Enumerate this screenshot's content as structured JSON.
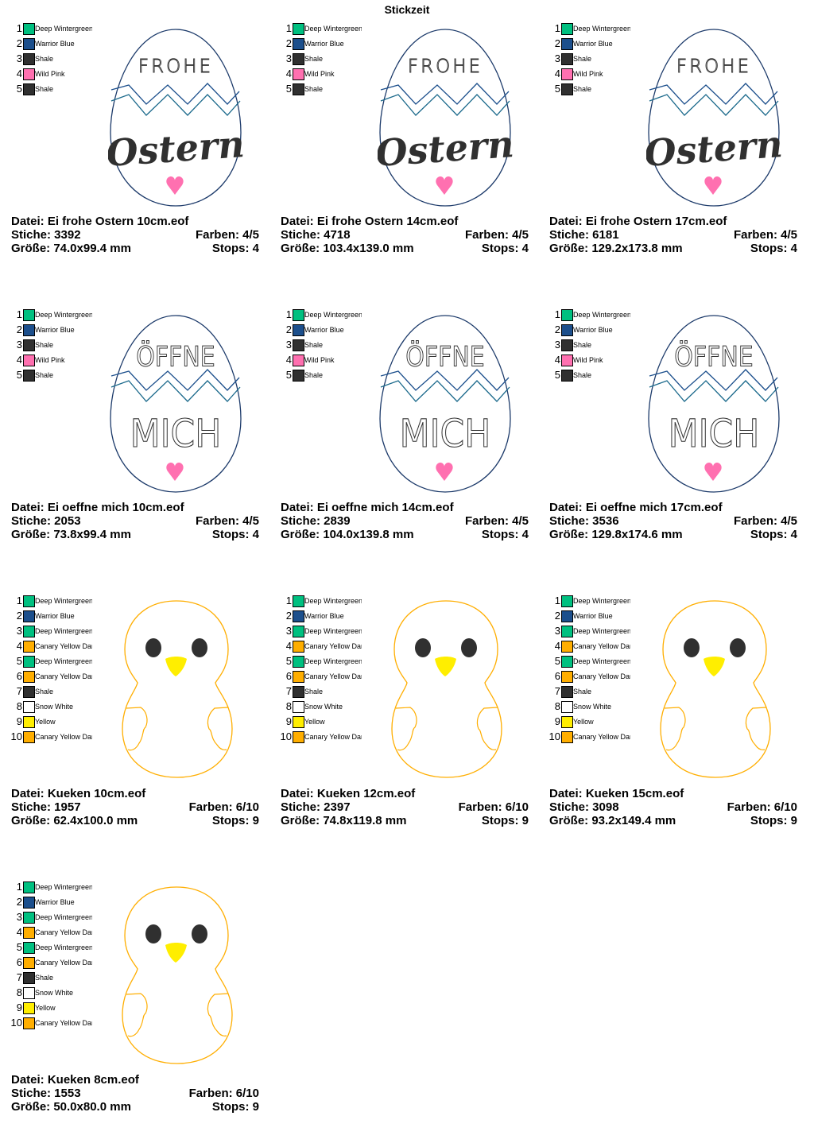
{
  "title": "Stickzeit",
  "palette": {
    "Deep Wintergreen": "#00c080",
    "Warrior Blue": "#1c4f8c",
    "Shale": "#303030",
    "Wild Pink": "#ff70b0",
    "Canary Yellow Dark": "#ffae00",
    "Snow White": "#ffffff",
    "Yellow": "#ffee00"
  },
  "cards": [
    {
      "design": "egg-frohe",
      "art_text": [
        "FROHE",
        "Ostern"
      ],
      "file": "Datei: Ei frohe Ostern 10cm.eof",
      "stitches": "Stiche: 3392",
      "colors_used": "Farben: 4/5",
      "size": "Größe: 74.0x99.4 mm",
      "stops": "Stops: 4",
      "colors": [
        {
          "n": "1",
          "name": "Deep Wintergreen",
          "hex": "#00c080"
        },
        {
          "n": "2",
          "name": "Warrior Blue",
          "hex": "#1c4f8c"
        },
        {
          "n": "3",
          "name": "Shale",
          "hex": "#303030"
        },
        {
          "n": "4",
          "name": "Wild Pink",
          "hex": "#ff70b0"
        },
        {
          "n": "5",
          "name": "Shale",
          "hex": "#303030"
        }
      ]
    },
    {
      "design": "egg-frohe",
      "art_text": [
        "FROHE",
        "Ostern"
      ],
      "file": "Datei: Ei frohe Ostern 14cm.eof",
      "stitches": "Stiche: 4718",
      "colors_used": "Farben: 4/5",
      "size": "Größe: 103.4x139.0 mm",
      "stops": "Stops: 4",
      "colors": [
        {
          "n": "1",
          "name": "Deep Wintergreen",
          "hex": "#00c080"
        },
        {
          "n": "2",
          "name": "Warrior Blue",
          "hex": "#1c4f8c"
        },
        {
          "n": "3",
          "name": "Shale",
          "hex": "#303030"
        },
        {
          "n": "4",
          "name": "Wild Pink",
          "hex": "#ff70b0"
        },
        {
          "n": "5",
          "name": "Shale",
          "hex": "#303030"
        }
      ]
    },
    {
      "design": "egg-frohe",
      "art_text": [
        "FROHE",
        "Ostern"
      ],
      "file": "Datei: Ei frohe Ostern 17cm.eof",
      "stitches": "Stiche: 6181",
      "colors_used": "Farben: 4/5",
      "size": "Größe: 129.2x173.8 mm",
      "stops": "Stops: 4",
      "colors": [
        {
          "n": "1",
          "name": "Deep Wintergreen",
          "hex": "#00c080"
        },
        {
          "n": "2",
          "name": "Warrior Blue",
          "hex": "#1c4f8c"
        },
        {
          "n": "3",
          "name": "Shale",
          "hex": "#303030"
        },
        {
          "n": "4",
          "name": "Wild Pink",
          "hex": "#ff70b0"
        },
        {
          "n": "5",
          "name": "Shale",
          "hex": "#303030"
        }
      ]
    },
    {
      "design": "egg-oeffne",
      "art_text": [
        "ÖFFNE",
        "MICH"
      ],
      "file": "Datei: Ei oeffne mich 10cm.eof",
      "stitches": "Stiche: 2053",
      "colors_used": "Farben: 4/5",
      "size": "Größe: 73.8x99.4 mm",
      "stops": "Stops: 4",
      "colors": [
        {
          "n": "1",
          "name": "Deep Wintergreen",
          "hex": "#00c080"
        },
        {
          "n": "2",
          "name": "Warrior Blue",
          "hex": "#1c4f8c"
        },
        {
          "n": "3",
          "name": "Shale",
          "hex": "#303030"
        },
        {
          "n": "4",
          "name": "Wild Pink",
          "hex": "#ff70b0"
        },
        {
          "n": "5",
          "name": "Shale",
          "hex": "#303030"
        }
      ]
    },
    {
      "design": "egg-oeffne",
      "art_text": [
        "ÖFFNE",
        "MICH"
      ],
      "file": "Datei: Ei oeffne mich 14cm.eof",
      "stitches": "Stiche: 2839",
      "colors_used": "Farben: 4/5",
      "size": "Größe: 104.0x139.8 mm",
      "stops": "Stops: 4",
      "colors": [
        {
          "n": "1",
          "name": "Deep Wintergreen",
          "hex": "#00c080"
        },
        {
          "n": "2",
          "name": "Warrior Blue",
          "hex": "#1c4f8c"
        },
        {
          "n": "3",
          "name": "Shale",
          "hex": "#303030"
        },
        {
          "n": "4",
          "name": "Wild Pink",
          "hex": "#ff70b0"
        },
        {
          "n": "5",
          "name": "Shale",
          "hex": "#303030"
        }
      ]
    },
    {
      "design": "egg-oeffne",
      "art_text": [
        "ÖFFNE",
        "MICH"
      ],
      "file": "Datei: Ei oeffne mich 17cm.eof",
      "stitches": "Stiche: 3536",
      "colors_used": "Farben: 4/5",
      "size": "Größe: 129.8x174.6 mm",
      "stops": "Stops: 4",
      "colors": [
        {
          "n": "1",
          "name": "Deep Wintergreen",
          "hex": "#00c080"
        },
        {
          "n": "2",
          "name": "Warrior Blue",
          "hex": "#1c4f8c"
        },
        {
          "n": "3",
          "name": "Shale",
          "hex": "#303030"
        },
        {
          "n": "4",
          "name": "Wild Pink",
          "hex": "#ff70b0"
        },
        {
          "n": "5",
          "name": "Shale",
          "hex": "#303030"
        }
      ]
    },
    {
      "design": "chick",
      "file": "Datei: Kueken 10cm.eof",
      "stitches": "Stiche: 1957",
      "colors_used": "Farben: 6/10",
      "size": "Größe: 62.4x100.0 mm",
      "stops": "Stops: 9",
      "colors": [
        {
          "n": "1",
          "name": "Deep Wintergreen",
          "hex": "#00c080"
        },
        {
          "n": "2",
          "name": "Warrior Blue",
          "hex": "#1c4f8c"
        },
        {
          "n": "3",
          "name": "Deep Wintergreen",
          "hex": "#00c080"
        },
        {
          "n": "4",
          "name": "Canary Yellow Dark",
          "hex": "#ffae00"
        },
        {
          "n": "5",
          "name": "Deep Wintergreen",
          "hex": "#00c080"
        },
        {
          "n": "6",
          "name": "Canary Yellow Dark",
          "hex": "#ffae00"
        },
        {
          "n": "7",
          "name": "Shale",
          "hex": "#303030"
        },
        {
          "n": "8",
          "name": "Snow White",
          "hex": "#ffffff"
        },
        {
          "n": "9",
          "name": "Yellow",
          "hex": "#ffee00"
        },
        {
          "n": "10",
          "name": "Canary Yellow Dark",
          "hex": "#ffae00"
        }
      ]
    },
    {
      "design": "chick",
      "file": "Datei: Kueken 12cm.eof",
      "stitches": "Stiche: 2397",
      "colors_used": "Farben: 6/10",
      "size": "Größe: 74.8x119.8 mm",
      "stops": "Stops: 9",
      "colors": [
        {
          "n": "1",
          "name": "Deep Wintergreen",
          "hex": "#00c080"
        },
        {
          "n": "2",
          "name": "Warrior Blue",
          "hex": "#1c4f8c"
        },
        {
          "n": "3",
          "name": "Deep Wintergreen",
          "hex": "#00c080"
        },
        {
          "n": "4",
          "name": "Canary Yellow Dark",
          "hex": "#ffae00"
        },
        {
          "n": "5",
          "name": "Deep Wintergreen",
          "hex": "#00c080"
        },
        {
          "n": "6",
          "name": "Canary Yellow Dark",
          "hex": "#ffae00"
        },
        {
          "n": "7",
          "name": "Shale",
          "hex": "#303030"
        },
        {
          "n": "8",
          "name": "Snow White",
          "hex": "#ffffff"
        },
        {
          "n": "9",
          "name": "Yellow",
          "hex": "#ffee00"
        },
        {
          "n": "10",
          "name": "Canary Yellow Dark",
          "hex": "#ffae00"
        }
      ]
    },
    {
      "design": "chick",
      "file": "Datei: Kueken 15cm.eof",
      "stitches": "Stiche: 3098",
      "colors_used": "Farben: 6/10",
      "size": "Größe: 93.2x149.4 mm",
      "stops": "Stops: 9",
      "colors": [
        {
          "n": "1",
          "name": "Deep Wintergreen",
          "hex": "#00c080"
        },
        {
          "n": "2",
          "name": "Warrior Blue",
          "hex": "#1c4f8c"
        },
        {
          "n": "3",
          "name": "Deep Wintergreen",
          "hex": "#00c080"
        },
        {
          "n": "4",
          "name": "Canary Yellow Dark",
          "hex": "#ffae00"
        },
        {
          "n": "5",
          "name": "Deep Wintergreen",
          "hex": "#00c080"
        },
        {
          "n": "6",
          "name": "Canary Yellow Dark",
          "hex": "#ffae00"
        },
        {
          "n": "7",
          "name": "Shale",
          "hex": "#303030"
        },
        {
          "n": "8",
          "name": "Snow White",
          "hex": "#ffffff"
        },
        {
          "n": "9",
          "name": "Yellow",
          "hex": "#ffee00"
        },
        {
          "n": "10",
          "name": "Canary Yellow Dark",
          "hex": "#ffae00"
        }
      ]
    },
    {
      "design": "chick",
      "file": "Datei: Kueken 8cm.eof",
      "stitches": "Stiche: 1553",
      "colors_used": "Farben: 6/10",
      "size": "Größe: 50.0x80.0 mm",
      "stops": "Stops: 9",
      "colors": [
        {
          "n": "1",
          "name": "Deep Wintergreen",
          "hex": "#00c080"
        },
        {
          "n": "2",
          "name": "Warrior Blue",
          "hex": "#1c4f8c"
        },
        {
          "n": "3",
          "name": "Deep Wintergreen",
          "hex": "#00c080"
        },
        {
          "n": "4",
          "name": "Canary Yellow Dark",
          "hex": "#ffae00"
        },
        {
          "n": "5",
          "name": "Deep Wintergreen",
          "hex": "#00c080"
        },
        {
          "n": "6",
          "name": "Canary Yellow Dark",
          "hex": "#ffae00"
        },
        {
          "n": "7",
          "name": "Shale",
          "hex": "#303030"
        },
        {
          "n": "8",
          "name": "Snow White",
          "hex": "#ffffff"
        },
        {
          "n": "9",
          "name": "Yellow",
          "hex": "#ffee00"
        },
        {
          "n": "10",
          "name": "Canary Yellow Dark",
          "hex": "#ffae00"
        }
      ]
    }
  ]
}
